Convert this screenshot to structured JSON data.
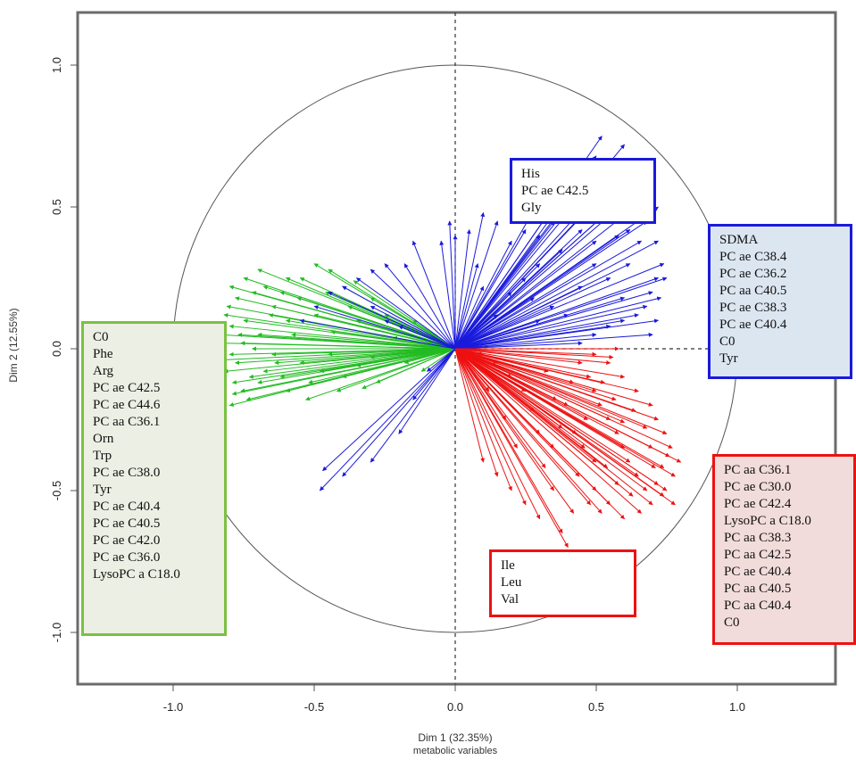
{
  "chart_data": {
    "type": "scatter",
    "xlabel": "Dim 1 (32.35%)",
    "xlabel_sub": "metabolic variables",
    "ylabel": "Dim 2 (12.55%)",
    "xlim": [
      -1.35,
      1.35
    ],
    "ylim": [
      -1.2,
      1.2
    ],
    "x_ticks": [
      "-1.0",
      "-0.5",
      "0.0",
      "0.5",
      "1.0"
    ],
    "y_ticks": [
      "-1.0",
      "-0.5",
      "0.0",
      "0.5",
      "1.0"
    ],
    "unit_circle": true,
    "reference_lines": "dashed lines at x = 0 and y = 0",
    "colors": {
      "green": "#22bb22",
      "blue": "#1a1adc",
      "red": "#ee1111"
    },
    "groups": [
      {
        "color": "green",
        "box_fill": "#ecefe3",
        "labels": [
          "C0",
          "Phe",
          "Arg",
          "PC ae C42.5",
          "PC ae C44.6",
          "PC aa C36.1",
          "Orn",
          "Trp",
          "PC ae C38.0",
          "Tyr",
          "PC ae C40.4",
          "PC ae C40.5",
          "PC ae C42.0",
          "PC ae C36.0",
          "LysoPC a C18.0"
        ]
      },
      {
        "color": "blue",
        "box_fill": "#ffffff",
        "labels": [
          "His",
          "PC ae C42.5",
          "Gly"
        ]
      },
      {
        "color": "blue",
        "box_fill": "#dce6f1",
        "labels": [
          "SDMA",
          "PC ae C38.4",
          "PC ae C36.2",
          "PC aa C40.5",
          "PC ae C38.3",
          "PC ae C40.4",
          "C0",
          "Tyr"
        ]
      },
      {
        "color": "red",
        "box_fill": "#f2dcdb",
        "labels": [
          "PC aa C36.1",
          "PC ae C30.0",
          "PC ae C42.4",
          "LysoPC a C18.0",
          "PC aa C38.3",
          "PC aa C42.5",
          "PC ae C40.4",
          "PC aa C40.5",
          "PC aa C40.4",
          "C0"
        ]
      },
      {
        "color": "red",
        "box_fill": "#ffffff",
        "labels": [
          "Ile",
          "Leu",
          "Val"
        ]
      }
    ],
    "series": [
      {
        "color": "green",
        "vectors": [
          [
            -0.8,
            0.22
          ],
          [
            -0.78,
            0.18
          ],
          [
            -0.75,
            0.25
          ],
          [
            -0.72,
            0.2
          ],
          [
            -0.7,
            0.28
          ],
          [
            -0.82,
            0.12
          ],
          [
            -0.8,
            0.08
          ],
          [
            -0.77,
            0.05
          ],
          [
            -0.83,
            0.02
          ],
          [
            -0.8,
            -0.02
          ],
          [
            -0.78,
            -0.05
          ],
          [
            -0.82,
            -0.08
          ],
          [
            -0.79,
            -0.12
          ],
          [
            -0.76,
            -0.15
          ],
          [
            -0.74,
            -0.18
          ],
          [
            -0.8,
            -0.2
          ],
          [
            -0.7,
            -0.12
          ],
          [
            -0.68,
            -0.08
          ],
          [
            -0.72,
            0.0
          ],
          [
            -0.65,
            0.15
          ],
          [
            -0.62,
            0.2
          ],
          [
            -0.6,
            0.1
          ],
          [
            -0.58,
            0.05
          ],
          [
            -0.55,
            0.25
          ],
          [
            -0.5,
            0.3
          ],
          [
            -0.45,
            0.28
          ],
          [
            -0.4,
            0.22
          ],
          [
            -0.38,
            0.15
          ],
          [
            -0.35,
            0.1
          ],
          [
            -0.3,
            0.18
          ],
          [
            -0.25,
            0.12
          ],
          [
            -0.2,
            0.08
          ],
          [
            -0.65,
            -0.02
          ],
          [
            -0.62,
            -0.1
          ],
          [
            -0.6,
            -0.15
          ],
          [
            -0.55,
            -0.05
          ],
          [
            -0.52,
            -0.12
          ],
          [
            -0.48,
            -0.08
          ],
          [
            -0.45,
            -0.02
          ],
          [
            -0.4,
            -0.1
          ],
          [
            -0.35,
            -0.06
          ],
          [
            -0.3,
            -0.03
          ],
          [
            -0.75,
            0.1
          ],
          [
            -0.73,
            -0.1
          ],
          [
            -0.7,
            0.05
          ],
          [
            -0.66,
            0.12
          ],
          [
            -0.64,
            -0.05
          ],
          [
            -0.56,
            0.18
          ],
          [
            -0.5,
            0.12
          ],
          [
            -0.44,
            0.06
          ],
          [
            -0.81,
            0.15
          ],
          [
            -0.79,
            -0.16
          ],
          [
            -0.76,
            0.02
          ],
          [
            -0.68,
            0.22
          ],
          [
            -0.42,
            -0.15
          ],
          [
            -0.36,
            0.24
          ],
          [
            -0.28,
            -0.12
          ],
          [
            -0.22,
            0.04
          ],
          [
            -0.18,
            -0.05
          ],
          [
            -0.15,
            0.1
          ],
          [
            -0.84,
            0.05
          ],
          [
            -0.84,
            -0.04
          ],
          [
            -0.6,
            0.25
          ],
          [
            -0.53,
            -0.18
          ],
          [
            -0.46,
            0.2
          ],
          [
            -0.33,
            -0.14
          ],
          [
            -0.12,
            -0.08
          ],
          [
            -0.08,
            0.05
          ]
        ]
      },
      {
        "color": "blue",
        "vectors": [
          [
            0.52,
            0.75
          ],
          [
            0.6,
            0.72
          ],
          [
            0.5,
            0.68
          ],
          [
            0.45,
            0.65
          ],
          [
            0.55,
            0.6
          ],
          [
            0.65,
            0.58
          ],
          [
            0.7,
            0.55
          ],
          [
            0.72,
            0.5
          ],
          [
            0.68,
            0.45
          ],
          [
            0.62,
            0.42
          ],
          [
            0.58,
            0.4
          ],
          [
            0.5,
            0.38
          ],
          [
            0.45,
            0.42
          ],
          [
            0.4,
            0.5
          ],
          [
            0.35,
            0.45
          ],
          [
            0.3,
            0.4
          ],
          [
            0.25,
            0.42
          ],
          [
            0.2,
            0.38
          ],
          [
            0.15,
            0.45
          ],
          [
            0.1,
            0.48
          ],
          [
            0.05,
            0.42
          ],
          [
            0.0,
            0.4
          ],
          [
            0.72,
            0.38
          ],
          [
            0.74,
            0.3
          ],
          [
            0.72,
            0.25
          ],
          [
            0.7,
            0.2
          ],
          [
            0.68,
            0.15
          ],
          [
            0.65,
            0.12
          ],
          [
            0.6,
            0.1
          ],
          [
            0.55,
            0.08
          ],
          [
            0.5,
            0.05
          ],
          [
            0.45,
            0.02
          ],
          [
            0.75,
            0.25
          ],
          [
            0.73,
            0.18
          ],
          [
            0.72,
            0.1
          ],
          [
            0.7,
            0.05
          ],
          [
            0.3,
            0.3
          ],
          [
            0.25,
            0.25
          ],
          [
            0.2,
            0.2
          ],
          [
            0.35,
            0.15
          ],
          [
            0.4,
            0.12
          ],
          [
            0.45,
            0.22
          ],
          [
            0.55,
            0.25
          ],
          [
            0.62,
            0.3
          ],
          [
            0.5,
            0.3
          ],
          [
            0.38,
            0.35
          ],
          [
            0.28,
            0.18
          ],
          [
            0.15,
            0.12
          ],
          [
            0.1,
            0.22
          ],
          [
            0.08,
            0.3
          ],
          [
            -0.02,
            0.45
          ],
          [
            -0.05,
            0.38
          ],
          [
            -0.15,
            0.38
          ],
          [
            -0.18,
            0.3
          ],
          [
            -0.25,
            0.3
          ],
          [
            -0.3,
            0.28
          ],
          [
            -0.35,
            0.25
          ],
          [
            -0.4,
            0.22
          ],
          [
            -0.45,
            0.2
          ],
          [
            -0.5,
            0.15
          ],
          [
            -0.3,
            0.15
          ],
          [
            -0.25,
            0.1
          ],
          [
            -0.2,
            0.08
          ],
          [
            -0.55,
            0.1
          ],
          [
            -0.48,
            -0.5
          ],
          [
            -0.47,
            -0.43
          ],
          [
            -0.4,
            -0.45
          ],
          [
            -0.3,
            -0.4
          ],
          [
            -0.2,
            -0.3
          ],
          [
            -0.15,
            -0.18
          ],
          [
            -0.1,
            -0.08
          ],
          [
            0.3,
            0.1
          ],
          [
            0.6,
            0.18
          ],
          [
            0.66,
            0.38
          ],
          [
            0.56,
            0.5
          ],
          [
            0.42,
            0.55
          ],
          [
            0.33,
            0.58
          ],
          [
            0.63,
            0.66
          ],
          [
            0.7,
            0.6
          ],
          [
            0.5,
            0.52
          ]
        ]
      },
      {
        "color": "red",
        "vectors": [
          [
            0.4,
            -0.7
          ],
          [
            0.38,
            -0.65
          ],
          [
            0.3,
            -0.6
          ],
          [
            0.25,
            -0.55
          ],
          [
            0.2,
            -0.5
          ],
          [
            0.15,
            -0.45
          ],
          [
            0.1,
            -0.4
          ],
          [
            0.78,
            -0.45
          ],
          [
            0.76,
            -0.38
          ],
          [
            0.75,
            -0.3
          ],
          [
            0.72,
            -0.25
          ],
          [
            0.7,
            -0.2
          ],
          [
            0.65,
            -0.15
          ],
          [
            0.6,
            -0.1
          ],
          [
            0.55,
            -0.05
          ],
          [
            0.5,
            -0.02
          ],
          [
            0.78,
            -0.55
          ],
          [
            0.75,
            -0.5
          ],
          [
            0.72,
            -0.48
          ],
          [
            0.7,
            -0.55
          ],
          [
            0.68,
            -0.5
          ],
          [
            0.65,
            -0.45
          ],
          [
            0.62,
            -0.4
          ],
          [
            0.6,
            -0.35
          ],
          [
            0.58,
            -0.3
          ],
          [
            0.55,
            -0.25
          ],
          [
            0.52,
            -0.2
          ],
          [
            0.5,
            -0.15
          ],
          [
            0.48,
            -0.1
          ],
          [
            0.45,
            -0.05
          ],
          [
            0.42,
            -0.12
          ],
          [
            0.4,
            -0.2
          ],
          [
            0.38,
            -0.28
          ],
          [
            0.35,
            -0.35
          ],
          [
            0.3,
            -0.3
          ],
          [
            0.28,
            -0.22
          ],
          [
            0.25,
            -0.15
          ],
          [
            0.2,
            -0.1
          ],
          [
            0.15,
            -0.05
          ],
          [
            0.1,
            -0.02
          ],
          [
            0.8,
            -0.4
          ],
          [
            0.77,
            -0.35
          ],
          [
            0.74,
            -0.42
          ],
          [
            0.66,
            -0.58
          ],
          [
            0.63,
            -0.52
          ],
          [
            0.58,
            -0.48
          ],
          [
            0.54,
            -0.42
          ],
          [
            0.5,
            -0.4
          ],
          [
            0.46,
            -0.35
          ],
          [
            0.44,
            -0.45
          ],
          [
            0.55,
            -0.55
          ],
          [
            0.6,
            -0.6
          ],
          [
            0.5,
            -0.5
          ],
          [
            0.35,
            -0.5
          ],
          [
            0.32,
            -0.42
          ],
          [
            0.22,
            -0.35
          ],
          [
            0.18,
            -0.25
          ],
          [
            0.12,
            -0.15
          ],
          [
            0.7,
            -0.35
          ],
          [
            0.68,
            -0.28
          ],
          [
            0.64,
            -0.22
          ],
          [
            0.6,
            -0.26
          ],
          [
            0.57,
            -0.18
          ],
          [
            0.53,
            -0.12
          ],
          [
            0.47,
            -0.25
          ],
          [
            0.43,
            -0.3
          ],
          [
            0.36,
            -0.18
          ],
          [
            0.33,
            -0.08
          ],
          [
            0.58,
            0.0
          ],
          [
            0.56,
            -0.03
          ],
          [
            0.52,
            -0.58
          ],
          [
            0.48,
            -0.55
          ],
          [
            0.42,
            -0.58
          ],
          [
            0.74,
            -0.52
          ],
          [
            0.71,
            -0.42
          ]
        ]
      }
    ]
  }
}
